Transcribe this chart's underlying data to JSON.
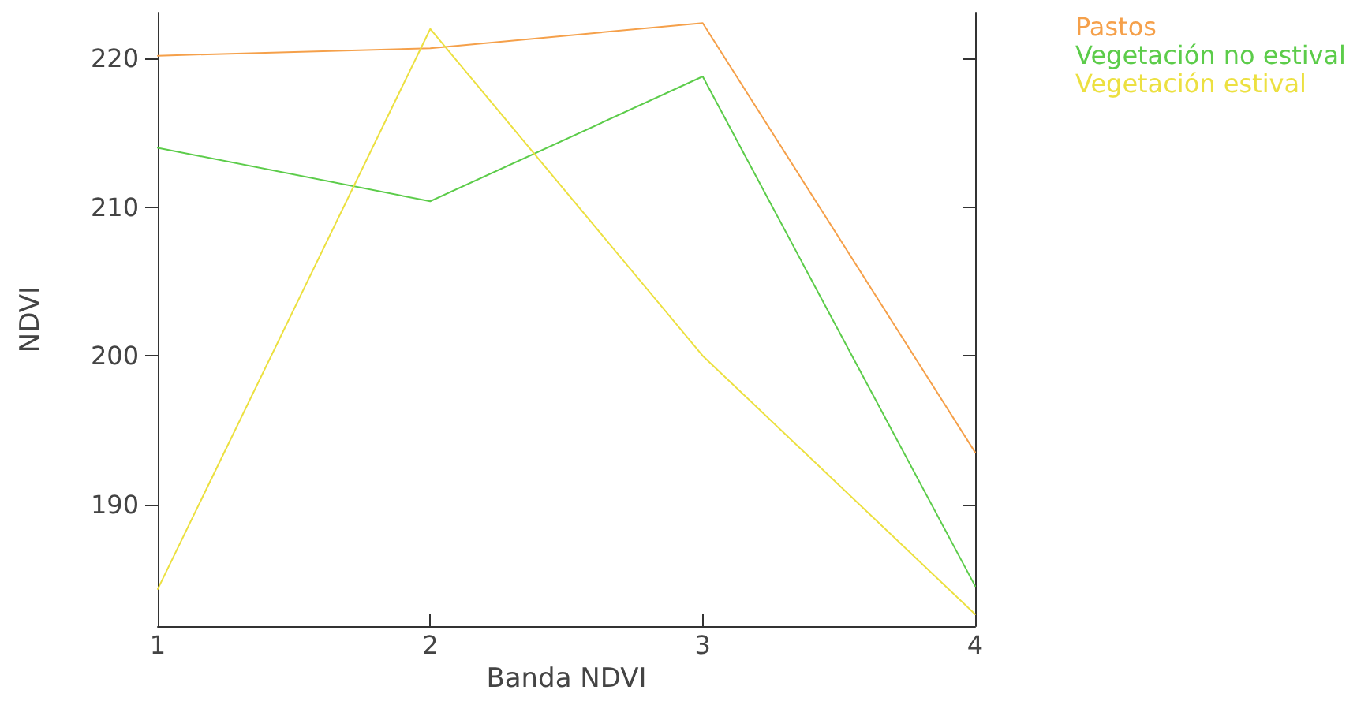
{
  "chart_data": {
    "type": "line",
    "xlabel": "Banda NDVI",
    "ylabel": "NDVI",
    "x": [
      1,
      2,
      3,
      4
    ],
    "xlim": [
      1,
      4
    ],
    "xticks": [
      1,
      2,
      3,
      4
    ],
    "ylim": [
      181.8,
      223.1
    ],
    "yticks": [
      190,
      200,
      210,
      220
    ],
    "grid": false,
    "legend": "top right",
    "marker": "none",
    "series": [
      {
        "name": "Pastos",
        "color": "#f5a04a",
        "values": [
          220.2,
          220.7,
          222.4,
          193.5
        ]
      },
      {
        "name": "Vegetación no estival",
        "color": "#5ccc4a",
        "values": [
          214,
          210.4,
          218.8,
          184.5
        ]
      },
      {
        "name": "Vegetación estival",
        "color": "#ece040",
        "values": [
          184.3,
          222,
          200,
          182.6
        ]
      }
    ]
  }
}
